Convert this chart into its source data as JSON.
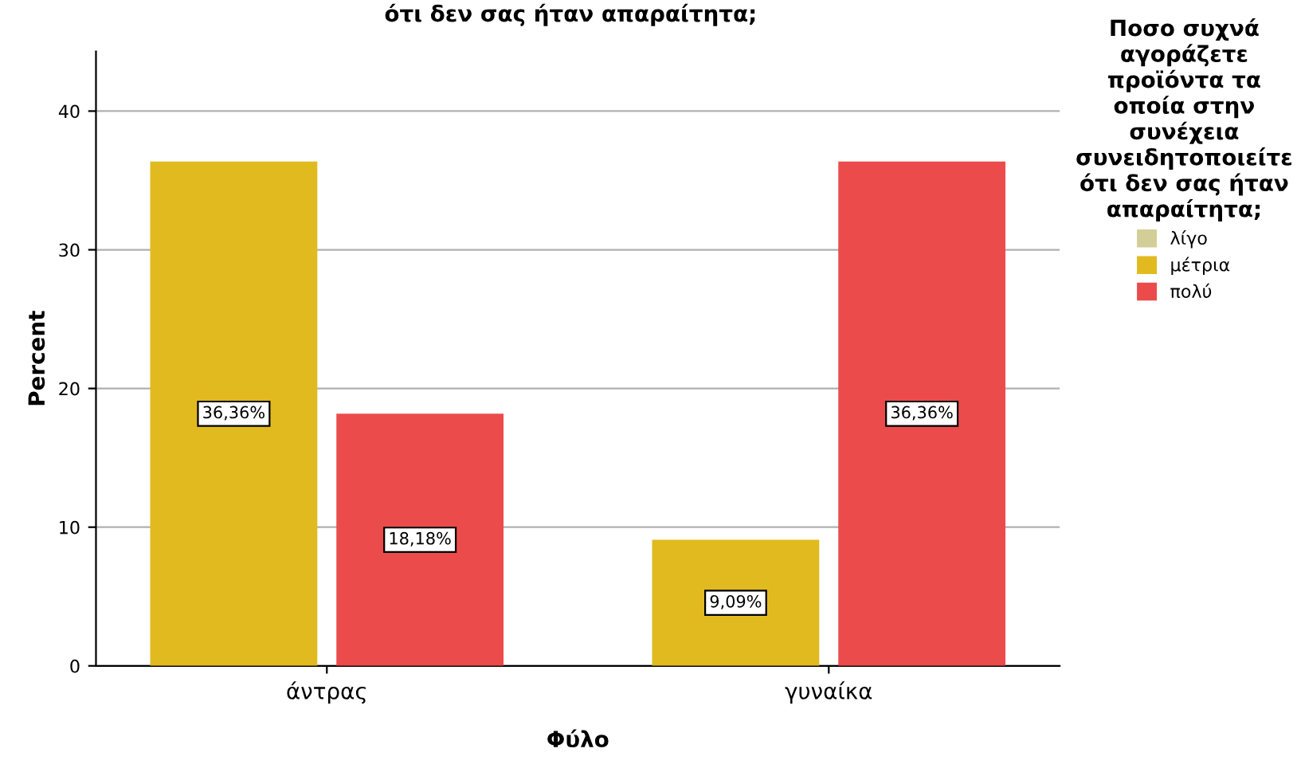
{
  "chart_data": {
    "type": "bar",
    "title": "ότι δεν σας ήταν απαραίτητα;",
    "xlabel": "Φύλο",
    "ylabel": "Percent",
    "legend_title": "Ποσο συχνά\nαγοράζετε\nπροϊόντα τα\nοποία στην\nσυνέχεια\nσυνειδητοποιείτε\nότι δεν σας ήταν\nαπαραίτητα;",
    "categories": [
      "άντρας",
      "γυναίκα"
    ],
    "series": [
      {
        "name": "λίγο",
        "color": "#d3ce97",
        "values": [
          null,
          null
        ],
        "value_labels": [
          null,
          null
        ]
      },
      {
        "name": "μέτρια",
        "color": "#e1ba1f",
        "values": [
          36.36,
          9.09
        ],
        "value_labels": [
          "36,36%",
          "9,09%"
        ]
      },
      {
        "name": "πολύ",
        "color": "#ec4b4b",
        "values": [
          18.18,
          36.36
        ],
        "value_labels": [
          "18,18%",
          "36,36%"
        ]
      }
    ],
    "ylim": [
      0,
      44.3
    ],
    "yticks": [
      0,
      10,
      20,
      30,
      40
    ],
    "grid": "y",
    "legend": "right"
  }
}
